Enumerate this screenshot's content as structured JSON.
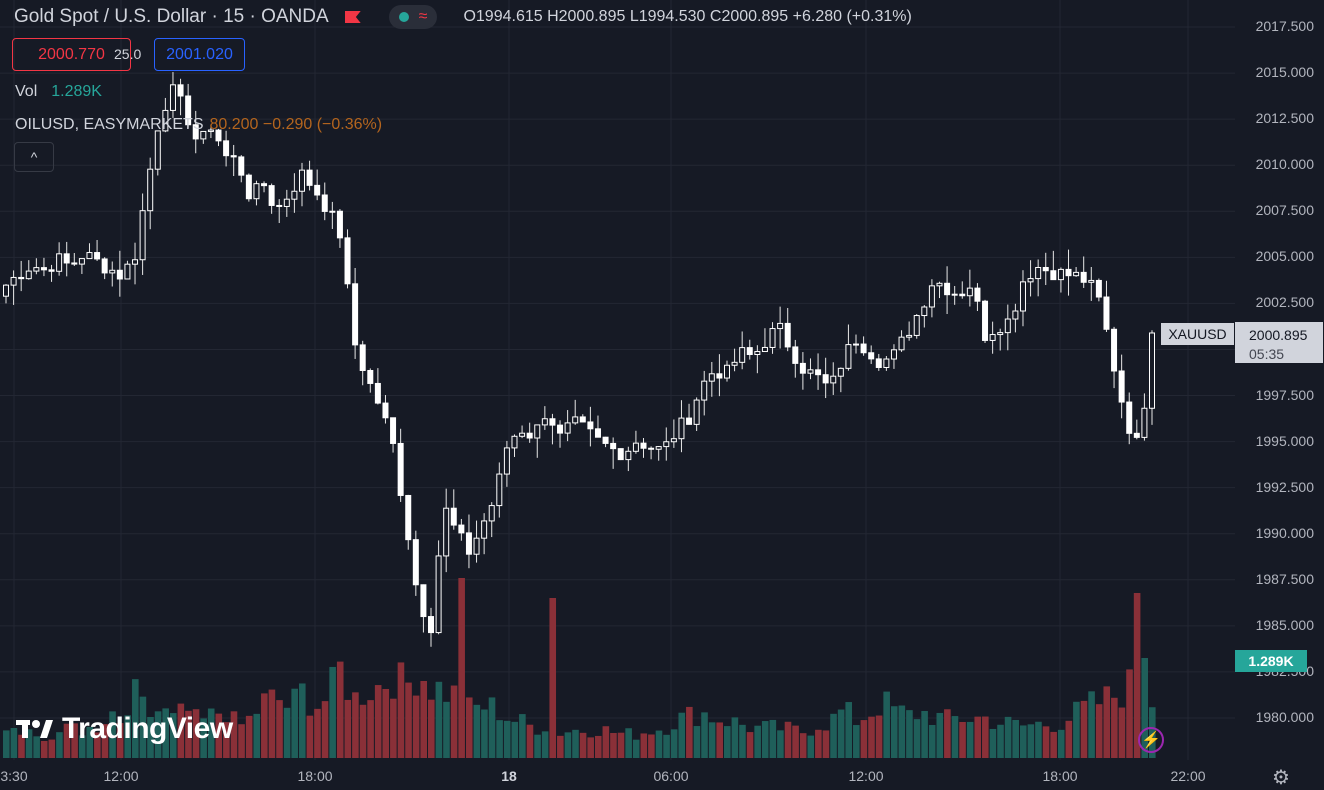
{
  "header": {
    "title": "Gold Spot / U.S. Dollar · 15 · OANDA",
    "ohlc": "O1994.615  H2000.895  L1994.530  C2000.895  +6.280 (+0.31%)",
    "wave_symbol": "≈"
  },
  "trade": {
    "bid": "2000.770",
    "spread": "25.0",
    "ask": "2001.020"
  },
  "volume_legend": {
    "label": "Vol",
    "value": "1.289K"
  },
  "overlay_legend": {
    "symbol": "OILUSD, EASYMARKETS",
    "change": "80.200  −0.290  (−0.36%)"
  },
  "collapse_icon": "^",
  "logo": {
    "text": "TradingView"
  },
  "price_label": {
    "symbol": "XAUUSD",
    "price": "2000.895",
    "countdown": "05:35"
  },
  "volume_label": "1.289K",
  "colors": {
    "up": "#26a69a",
    "down": "#f23645",
    "background": "#161a25",
    "candle": "#ffffff"
  },
  "chart_data": {
    "type": "candlestick",
    "yaxis": {
      "min": 1977.5,
      "max": 2018.0,
      "ticks": [
        "2017.500",
        "2015.000",
        "2012.500",
        "2010.000",
        "2007.500",
        "2005.000",
        "2002.500",
        "2000.000",
        "1997.500",
        "1995.000",
        "1992.500",
        "1990.000",
        "1987.500",
        "1985.000",
        "1982.500",
        "1980.000"
      ]
    },
    "xaxis": {
      "ticks": [
        "3:30",
        "12:00",
        "18:00",
        "18",
        "06:00",
        "12:00",
        "18:00",
        "22:00"
      ]
    },
    "grid": true,
    "close_path": [
      2003.5,
      2004.1,
      2004.6,
      2004.3,
      2004.9,
      2004.5,
      2005.2,
      2004.8,
      2004.4,
      2004.0,
      2005.1,
      2009.0,
      2013.0,
      2014.0,
      2012.8,
      2011.0,
      2012.3,
      2010.5,
      2010.2,
      2008.2,
      2009.0,
      2007.5,
      2008.5,
      2009.5,
      2008.7,
      2007.6,
      2006.2,
      2000.5,
      1998.5,
      1997.0,
      1995.0,
      1991.0,
      1986.5,
      1985.0,
      1991.5,
      1990.0,
      1989.0,
      1990.5,
      1992.0,
      1995.0,
      1995.7,
      1995.3,
      1996.8,
      1995.2,
      1996.0,
      1995.6,
      1995.0,
      1994.6,
      1994.4,
      1995.1,
      1994.7,
      1994.5,
      1995.5,
      1996.3,
      1998.0,
      1998.9,
      1998.7,
      1999.8,
      1999.6,
      2000.5,
      2001.2,
      2000.0,
      1998.9,
      1998.5,
      1997.8,
      1999.5,
      2000.6,
      2000.0,
      1999.3,
      1999.7,
      2000.9,
      2002.2,
      2003.8,
      2003.4,
      2003.0,
      2003.6,
      2000.8,
      2001.3,
      2001.6,
      2003.8,
      2004.5,
      2004.3,
      2004.1,
      2004.0,
      2003.7,
      2002.5,
      1999.2,
      1996.2,
      1994.6,
      2000.895
    ],
    "volume_path": [
      34,
      34,
      25,
      18,
      18,
      40,
      28,
      22,
      40,
      30,
      62,
      42,
      48,
      38,
      48,
      34,
      42,
      50,
      30,
      40,
      56,
      60,
      50,
      66,
      52,
      60,
      90,
      58,
      70,
      72,
      84,
      70,
      90,
      72,
      68,
      62,
      48,
      52,
      50,
      40,
      36,
      30,
      34,
      26,
      28,
      28,
      30,
      26,
      24,
      24,
      28,
      30,
      38,
      42,
      46,
      40,
      38,
      34,
      30,
      30,
      30,
      28,
      26,
      34,
      36,
      48,
      38,
      44,
      56,
      48,
      42,
      46,
      42,
      38,
      40,
      40,
      40,
      36,
      34,
      32,
      34,
      34,
      36,
      44,
      52,
      56,
      62,
      70,
      78,
      60
    ],
    "volume_max_label": "1.289K"
  },
  "footer": {
    "gear_icon": "⚙",
    "bolt_icon": "⚡"
  }
}
